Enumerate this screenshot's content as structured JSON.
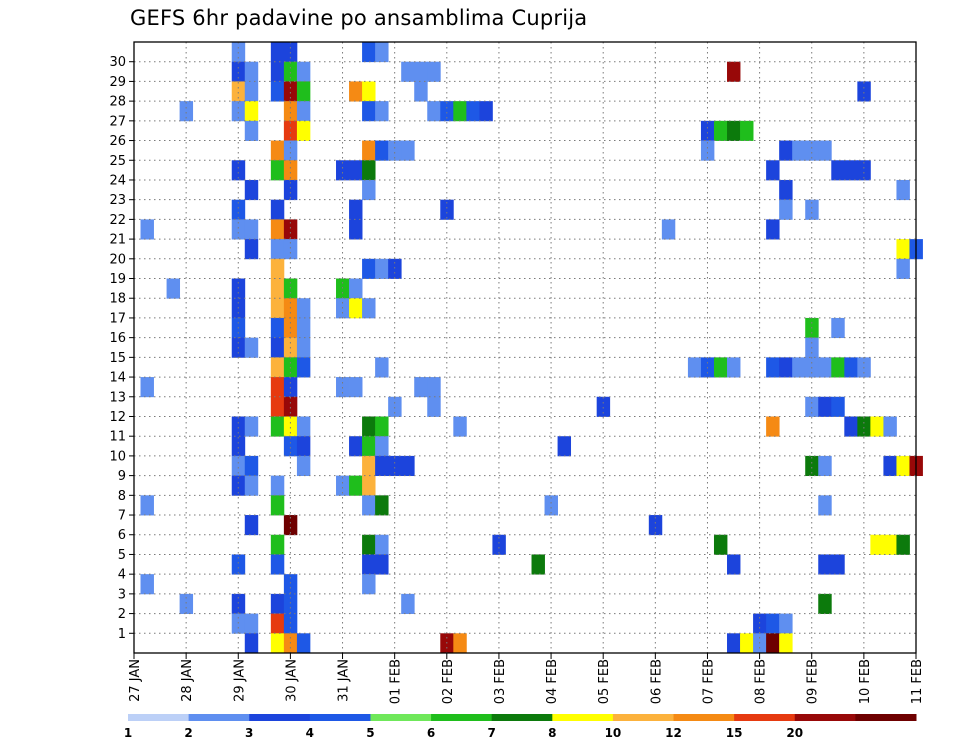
{
  "chart_data": {
    "type": "heatmap",
    "title": "GEFS 6hr padavine po ansamblima Cuprija",
    "x_tick_labels": [
      "27 JAN",
      "28 JAN",
      "29 JAN",
      "30 JAN",
      "31 JAN",
      "01 FEB",
      "02 FEB",
      "03 FEB",
      "04 FEB",
      "05 FEB",
      "06 FEB",
      "07 FEB",
      "08 FEB",
      "09 FEB",
      "10 FEB",
      "11 FEB"
    ],
    "y_tick_labels": [
      "1",
      "2",
      "3",
      "4",
      "5",
      "6",
      "7",
      "8",
      "9",
      "10",
      "11",
      "12",
      "13",
      "14",
      "15",
      "16",
      "17",
      "18",
      "19",
      "20",
      "21",
      "22",
      "23",
      "24",
      "25",
      "26",
      "27",
      "28",
      "29",
      "30"
    ],
    "x_steps_per_day": 4,
    "x_steps_total": 60,
    "y_members": 31,
    "grid": true,
    "legend": "bottom",
    "color_levels": [
      "1",
      "2",
      "3",
      "4",
      "5",
      "6",
      "7",
      "8",
      "10",
      "12",
      "15",
      "20"
    ],
    "color_scale": [
      "#bcd0f7",
      "#5f8ff0",
      "#1c44dc",
      "#1e58e6",
      "#6fe85a",
      "#1fbe1c",
      "#0c7a0c",
      "#ffff00",
      "#fcb23c",
      "#f58a14",
      "#e63a10",
      "#980808",
      "#6e0000"
    ],
    "cells": [
      {
        "x": 8,
        "y": 30,
        "c": 1
      },
      {
        "x": 11,
        "y": 30,
        "c": 2
      },
      {
        "x": 12,
        "y": 30,
        "c": 2
      },
      {
        "x": 18,
        "y": 30,
        "c": 3
      },
      {
        "x": 19,
        "y": 30,
        "c": 1
      },
      {
        "x": 8,
        "y": 29,
        "c": 2
      },
      {
        "x": 9,
        "y": 29,
        "c": 1
      },
      {
        "x": 11,
        "y": 29,
        "c": 2
      },
      {
        "x": 12,
        "y": 29,
        "c": 5
      },
      {
        "x": 13,
        "y": 29,
        "c": 1
      },
      {
        "x": 21,
        "y": 29,
        "c": 1
      },
      {
        "x": 22,
        "y": 29,
        "c": 1
      },
      {
        "x": 23,
        "y": 29,
        "c": 1
      },
      {
        "x": 46,
        "y": 29,
        "c": 11
      },
      {
        "x": 8,
        "y": 28,
        "c": 8
      },
      {
        "x": 9,
        "y": 28,
        "c": 1
      },
      {
        "x": 11,
        "y": 28,
        "c": 3
      },
      {
        "x": 12,
        "y": 28,
        "c": 11
      },
      {
        "x": 13,
        "y": 28,
        "c": 5
      },
      {
        "x": 17,
        "y": 28,
        "c": 9
      },
      {
        "x": 18,
        "y": 28,
        "c": 7
      },
      {
        "x": 22,
        "y": 28,
        "c": 1
      },
      {
        "x": 56,
        "y": 28,
        "c": 2
      },
      {
        "x": 4,
        "y": 27,
        "c": 1
      },
      {
        "x": 8,
        "y": 27,
        "c": 1
      },
      {
        "x": 9,
        "y": 27,
        "c": 7
      },
      {
        "x": 12,
        "y": 27,
        "c": 9
      },
      {
        "x": 13,
        "y": 27,
        "c": 1
      },
      {
        "x": 18,
        "y": 27,
        "c": 3
      },
      {
        "x": 19,
        "y": 27,
        "c": 1
      },
      {
        "x": 23,
        "y": 27,
        "c": 1
      },
      {
        "x": 24,
        "y": 27,
        "c": 3
      },
      {
        "x": 25,
        "y": 27,
        "c": 5
      },
      {
        "x": 26,
        "y": 27,
        "c": 3
      },
      {
        "x": 27,
        "y": 27,
        "c": 2
      },
      {
        "x": 9,
        "y": 26,
        "c": 1
      },
      {
        "x": 12,
        "y": 26,
        "c": 10
      },
      {
        "x": 13,
        "y": 26,
        "c": 7
      },
      {
        "x": 44,
        "y": 26,
        "c": 2
      },
      {
        "x": 45,
        "y": 26,
        "c": 5
      },
      {
        "x": 46,
        "y": 26,
        "c": 6
      },
      {
        "x": 47,
        "y": 26,
        "c": 5
      },
      {
        "x": 11,
        "y": 25,
        "c": 9
      },
      {
        "x": 12,
        "y": 25,
        "c": 1
      },
      {
        "x": 18,
        "y": 25,
        "c": 9
      },
      {
        "x": 19,
        "y": 25,
        "c": 3
      },
      {
        "x": 20,
        "y": 25,
        "c": 1
      },
      {
        "x": 21,
        "y": 25,
        "c": 1
      },
      {
        "x": 44,
        "y": 25,
        "c": 1
      },
      {
        "x": 50,
        "y": 25,
        "c": 2
      },
      {
        "x": 51,
        "y": 25,
        "c": 1
      },
      {
        "x": 52,
        "y": 25,
        "c": 1
      },
      {
        "x": 53,
        "y": 25,
        "c": 1
      },
      {
        "x": 8,
        "y": 24,
        "c": 2
      },
      {
        "x": 11,
        "y": 24,
        "c": 5
      },
      {
        "x": 12,
        "y": 24,
        "c": 9
      },
      {
        "x": 16,
        "y": 24,
        "c": 2
      },
      {
        "x": 17,
        "y": 24,
        "c": 2
      },
      {
        "x": 18,
        "y": 24,
        "c": 6
      },
      {
        "x": 49,
        "y": 24,
        "c": 2
      },
      {
        "x": 54,
        "y": 24,
        "c": 2
      },
      {
        "x": 55,
        "y": 24,
        "c": 2
      },
      {
        "x": 56,
        "y": 24,
        "c": 2
      },
      {
        "x": 9,
        "y": 23,
        "c": 2
      },
      {
        "x": 12,
        "y": 23,
        "c": 2
      },
      {
        "x": 18,
        "y": 23,
        "c": 1
      },
      {
        "x": 50,
        "y": 23,
        "c": 2
      },
      {
        "x": 59,
        "y": 23,
        "c": 1
      },
      {
        "x": 8,
        "y": 22,
        "c": 3
      },
      {
        "x": 11,
        "y": 22,
        "c": 2
      },
      {
        "x": 17,
        "y": 22,
        "c": 2
      },
      {
        "x": 24,
        "y": 22,
        "c": 2
      },
      {
        "x": 50,
        "y": 22,
        "c": 1
      },
      {
        "x": 52,
        "y": 22,
        "c": 1
      },
      {
        "x": 1,
        "y": 21,
        "c": 1
      },
      {
        "x": 8,
        "y": 21,
        "c": 1
      },
      {
        "x": 9,
        "y": 21,
        "c": 1
      },
      {
        "x": 11,
        "y": 21,
        "c": 9
      },
      {
        "x": 12,
        "y": 21,
        "c": 11
      },
      {
        "x": 17,
        "y": 21,
        "c": 2
      },
      {
        "x": 41,
        "y": 21,
        "c": 1
      },
      {
        "x": 49,
        "y": 21,
        "c": 2
      },
      {
        "x": 9,
        "y": 20,
        "c": 2
      },
      {
        "x": 11,
        "y": 20,
        "c": 1
      },
      {
        "x": 12,
        "y": 20,
        "c": 1
      },
      {
        "x": 59,
        "y": 20,
        "c": 7
      },
      {
        "x": 60,
        "y": 20,
        "c": 3
      },
      {
        "x": 11,
        "y": 19,
        "c": 8
      },
      {
        "x": 18,
        "y": 19,
        "c": 3
      },
      {
        "x": 19,
        "y": 19,
        "c": 1
      },
      {
        "x": 20,
        "y": 19,
        "c": 2
      },
      {
        "x": 59,
        "y": 19,
        "c": 1
      },
      {
        "x": 3,
        "y": 18,
        "c": 1
      },
      {
        "x": 8,
        "y": 18,
        "c": 2
      },
      {
        "x": 11,
        "y": 18,
        "c": 8
      },
      {
        "x": 12,
        "y": 18,
        "c": 5
      },
      {
        "x": 16,
        "y": 18,
        "c": 5
      },
      {
        "x": 17,
        "y": 18,
        "c": 1
      },
      {
        "x": 8,
        "y": 17,
        "c": 2
      },
      {
        "x": 11,
        "y": 17,
        "c": 8
      },
      {
        "x": 12,
        "y": 17,
        "c": 9
      },
      {
        "x": 13,
        "y": 17,
        "c": 1
      },
      {
        "x": 16,
        "y": 17,
        "c": 1
      },
      {
        "x": 17,
        "y": 17,
        "c": 7
      },
      {
        "x": 18,
        "y": 17,
        "c": 1
      },
      {
        "x": 8,
        "y": 16,
        "c": 3
      },
      {
        "x": 11,
        "y": 16,
        "c": 3
      },
      {
        "x": 12,
        "y": 16,
        "c": 9
      },
      {
        "x": 13,
        "y": 16,
        "c": 1
      },
      {
        "x": 52,
        "y": 16,
        "c": 5
      },
      {
        "x": 54,
        "y": 16,
        "c": 1
      },
      {
        "x": 8,
        "y": 15,
        "c": 2
      },
      {
        "x": 9,
        "y": 15,
        "c": 1
      },
      {
        "x": 11,
        "y": 15,
        "c": 2
      },
      {
        "x": 12,
        "y": 15,
        "c": 8
      },
      {
        "x": 13,
        "y": 15,
        "c": 1
      },
      {
        "x": 52,
        "y": 15,
        "c": 1
      },
      {
        "x": 11,
        "y": 14,
        "c": 8
      },
      {
        "x": 12,
        "y": 14,
        "c": 5
      },
      {
        "x": 13,
        "y": 14,
        "c": 3
      },
      {
        "x": 19,
        "y": 14,
        "c": 1
      },
      {
        "x": 43,
        "y": 14,
        "c": 1
      },
      {
        "x": 44,
        "y": 14,
        "c": 3
      },
      {
        "x": 45,
        "y": 14,
        "c": 5
      },
      {
        "x": 46,
        "y": 14,
        "c": 1
      },
      {
        "x": 49,
        "y": 14,
        "c": 3
      },
      {
        "x": 50,
        "y": 14,
        "c": 2
      },
      {
        "x": 51,
        "y": 14,
        "c": 1
      },
      {
        "x": 52,
        "y": 14,
        "c": 1
      },
      {
        "x": 53,
        "y": 14,
        "c": 1
      },
      {
        "x": 54,
        "y": 14,
        "c": 5
      },
      {
        "x": 55,
        "y": 14,
        "c": 3
      },
      {
        "x": 56,
        "y": 14,
        "c": 1
      },
      {
        "x": 1,
        "y": 13,
        "c": 1
      },
      {
        "x": 11,
        "y": 13,
        "c": 10
      },
      {
        "x": 12,
        "y": 13,
        "c": 2
      },
      {
        "x": 16,
        "y": 13,
        "c": 1
      },
      {
        "x": 17,
        "y": 13,
        "c": 1
      },
      {
        "x": 22,
        "y": 13,
        "c": 1
      },
      {
        "x": 23,
        "y": 13,
        "c": 1
      },
      {
        "x": 11,
        "y": 12,
        "c": 10
      },
      {
        "x": 12,
        "y": 12,
        "c": 11
      },
      {
        "x": 20,
        "y": 12,
        "c": 1
      },
      {
        "x": 23,
        "y": 12,
        "c": 1
      },
      {
        "x": 36,
        "y": 12,
        "c": 2
      },
      {
        "x": 52,
        "y": 12,
        "c": 1
      },
      {
        "x": 53,
        "y": 12,
        "c": 2
      },
      {
        "x": 54,
        "y": 12,
        "c": 3
      },
      {
        "x": 8,
        "y": 11,
        "c": 2
      },
      {
        "x": 9,
        "y": 11,
        "c": 1
      },
      {
        "x": 11,
        "y": 11,
        "c": 5
      },
      {
        "x": 12,
        "y": 11,
        "c": 7
      },
      {
        "x": 13,
        "y": 11,
        "c": 1
      },
      {
        "x": 18,
        "y": 11,
        "c": 6
      },
      {
        "x": 19,
        "y": 11,
        "c": 5
      },
      {
        "x": 25,
        "y": 11,
        "c": 1
      },
      {
        "x": 49,
        "y": 11,
        "c": 9
      },
      {
        "x": 55,
        "y": 11,
        "c": 2
      },
      {
        "x": 56,
        "y": 11,
        "c": 6
      },
      {
        "x": 57,
        "y": 11,
        "c": 7
      },
      {
        "x": 58,
        "y": 11,
        "c": 1
      },
      {
        "x": 8,
        "y": 10,
        "c": 2
      },
      {
        "x": 12,
        "y": 10,
        "c": 3
      },
      {
        "x": 13,
        "y": 10,
        "c": 2
      },
      {
        "x": 17,
        "y": 10,
        "c": 2
      },
      {
        "x": 18,
        "y": 10,
        "c": 5
      },
      {
        "x": 19,
        "y": 10,
        "c": 1
      },
      {
        "x": 33,
        "y": 10,
        "c": 2
      },
      {
        "x": 8,
        "y": 9,
        "c": 1
      },
      {
        "x": 9,
        "y": 9,
        "c": 3
      },
      {
        "x": 13,
        "y": 9,
        "c": 1
      },
      {
        "x": 18,
        "y": 9,
        "c": 8
      },
      {
        "x": 19,
        "y": 9,
        "c": 2
      },
      {
        "x": 20,
        "y": 9,
        "c": 2
      },
      {
        "x": 21,
        "y": 9,
        "c": 2
      },
      {
        "x": 52,
        "y": 9,
        "c": 6
      },
      {
        "x": 53,
        "y": 9,
        "c": 1
      },
      {
        "x": 58,
        "y": 9,
        "c": 2
      },
      {
        "x": 59,
        "y": 9,
        "c": 7
      },
      {
        "x": 60,
        "y": 9,
        "c": 11
      },
      {
        "x": 8,
        "y": 8,
        "c": 2
      },
      {
        "x": 9,
        "y": 8,
        "c": 1
      },
      {
        "x": 11,
        "y": 8,
        "c": 1
      },
      {
        "x": 16,
        "y": 8,
        "c": 1
      },
      {
        "x": 17,
        "y": 8,
        "c": 5
      },
      {
        "x": 18,
        "y": 8,
        "c": 8
      },
      {
        "x": 1,
        "y": 7,
        "c": 1
      },
      {
        "x": 11,
        "y": 7,
        "c": 5
      },
      {
        "x": 18,
        "y": 7,
        "c": 1
      },
      {
        "x": 19,
        "y": 7,
        "c": 6
      },
      {
        "x": 32,
        "y": 7,
        "c": 1
      },
      {
        "x": 53,
        "y": 7,
        "c": 1
      },
      {
        "x": 9,
        "y": 6,
        "c": 2
      },
      {
        "x": 12,
        "y": 6,
        "c": 12
      },
      {
        "x": 40,
        "y": 6,
        "c": 2
      },
      {
        "x": 11,
        "y": 5,
        "c": 5
      },
      {
        "x": 18,
        "y": 5,
        "c": 6
      },
      {
        "x": 19,
        "y": 5,
        "c": 1
      },
      {
        "x": 28,
        "y": 5,
        "c": 2
      },
      {
        "x": 45,
        "y": 5,
        "c": 6
      },
      {
        "x": 57,
        "y": 5,
        "c": 7
      },
      {
        "x": 58,
        "y": 5,
        "c": 7
      },
      {
        "x": 59,
        "y": 5,
        "c": 6
      },
      {
        "x": 8,
        "y": 4,
        "c": 3
      },
      {
        "x": 11,
        "y": 4,
        "c": 3
      },
      {
        "x": 18,
        "y": 4,
        "c": 2
      },
      {
        "x": 19,
        "y": 4,
        "c": 2
      },
      {
        "x": 31,
        "y": 4,
        "c": 6
      },
      {
        "x": 46,
        "y": 4,
        "c": 2
      },
      {
        "x": 53,
        "y": 4,
        "c": 2
      },
      {
        "x": 54,
        "y": 4,
        "c": 2
      },
      {
        "x": 1,
        "y": 3,
        "c": 1
      },
      {
        "x": 12,
        "y": 3,
        "c": 3
      },
      {
        "x": 18,
        "y": 3,
        "c": 1
      },
      {
        "x": 4,
        "y": 2,
        "c": 1
      },
      {
        "x": 8,
        "y": 2,
        "c": 2
      },
      {
        "x": 11,
        "y": 2,
        "c": 2
      },
      {
        "x": 12,
        "y": 2,
        "c": 3
      },
      {
        "x": 21,
        "y": 2,
        "c": 1
      },
      {
        "x": 53,
        "y": 2,
        "c": 6
      },
      {
        "x": 8,
        "y": 1,
        "c": 1
      },
      {
        "x": 9,
        "y": 1,
        "c": 1
      },
      {
        "x": 11,
        "y": 1,
        "c": 10
      },
      {
        "x": 12,
        "y": 1,
        "c": 3
      },
      {
        "x": 48,
        "y": 1,
        "c": 2
      },
      {
        "x": 49,
        "y": 1,
        "c": 3
      },
      {
        "x": 50,
        "y": 1,
        "c": 1
      },
      {
        "x": 9,
        "y": 0,
        "c": 2
      },
      {
        "x": 11,
        "y": 0,
        "c": 7
      },
      {
        "x": 12,
        "y": 0,
        "c": 9
      },
      {
        "x": 13,
        "y": 0,
        "c": 3
      },
      {
        "x": 24,
        "y": 0,
        "c": 11
      },
      {
        "x": 25,
        "y": 0,
        "c": 9
      },
      {
        "x": 46,
        "y": 0,
        "c": 2
      },
      {
        "x": 47,
        "y": 0,
        "c": 7
      },
      {
        "x": 48,
        "y": 0,
        "c": 1
      },
      {
        "x": 49,
        "y": 0,
        "c": 12
      },
      {
        "x": 50,
        "y": 0,
        "c": 7
      }
    ]
  }
}
